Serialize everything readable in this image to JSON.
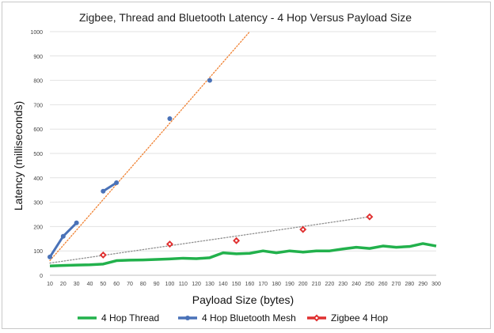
{
  "chart_data": {
    "type": "line",
    "title": "Zigbee, Thread and Bluetooth Latency - 4 Hop Versus Payload Size",
    "xlabel": "Payload Size (bytes)",
    "ylabel": "Latency (milliseconds)",
    "xlim": [
      10,
      300
    ],
    "ylim": [
      0,
      1000
    ],
    "x_ticks": [
      10,
      20,
      30,
      40,
      50,
      60,
      70,
      80,
      90,
      100,
      110,
      120,
      130,
      140,
      150,
      160,
      170,
      180,
      190,
      200,
      210,
      220,
      230,
      240,
      250,
      260,
      270,
      280,
      290,
      300
    ],
    "y_ticks": [
      0,
      100,
      200,
      300,
      400,
      500,
      600,
      700,
      800,
      900,
      1000
    ],
    "grid": "horizontal",
    "legend_position": "bottom",
    "series": [
      {
        "name": "4 Hop Thread",
        "color": "#22b14c",
        "x": [
          10,
          20,
          30,
          40,
          50,
          60,
          70,
          80,
          90,
          100,
          110,
          120,
          130,
          140,
          150,
          160,
          170,
          180,
          190,
          200,
          210,
          220,
          230,
          240,
          250,
          260,
          270,
          280,
          290,
          300
        ],
        "y": [
          38,
          40,
          42,
          43,
          46,
          60,
          62,
          63,
          65,
          67,
          70,
          68,
          72,
          92,
          88,
          90,
          100,
          92,
          100,
          95,
          100,
          100,
          108,
          115,
          110,
          120,
          115,
          118,
          130,
          120
        ]
      },
      {
        "name": "4 Hop Bluetooth Mesh",
        "color": "#4a72b8",
        "x": [
          10,
          20,
          30,
          50,
          60,
          100,
          130
        ],
        "y": [
          75,
          160,
          215,
          345,
          380,
          643,
          800
        ],
        "segments": [
          [
            10,
            20,
            30
          ],
          [
            50,
            60
          ]
        ],
        "trendline": {
          "color": "#f08030",
          "style": "dotted",
          "from": [
            10,
            60
          ],
          "to": [
            160,
            1000
          ]
        }
      },
      {
        "name": "Zigbee 4 Hop",
        "color": "#e03030",
        "x": [
          50,
          100,
          150,
          200,
          250
        ],
        "y": [
          83,
          128,
          142,
          188,
          240
        ],
        "trendline": {
          "color": "#909090",
          "style": "dotted",
          "from": [
            10,
            50
          ],
          "to": [
            250,
            240
          ]
        }
      }
    ]
  }
}
